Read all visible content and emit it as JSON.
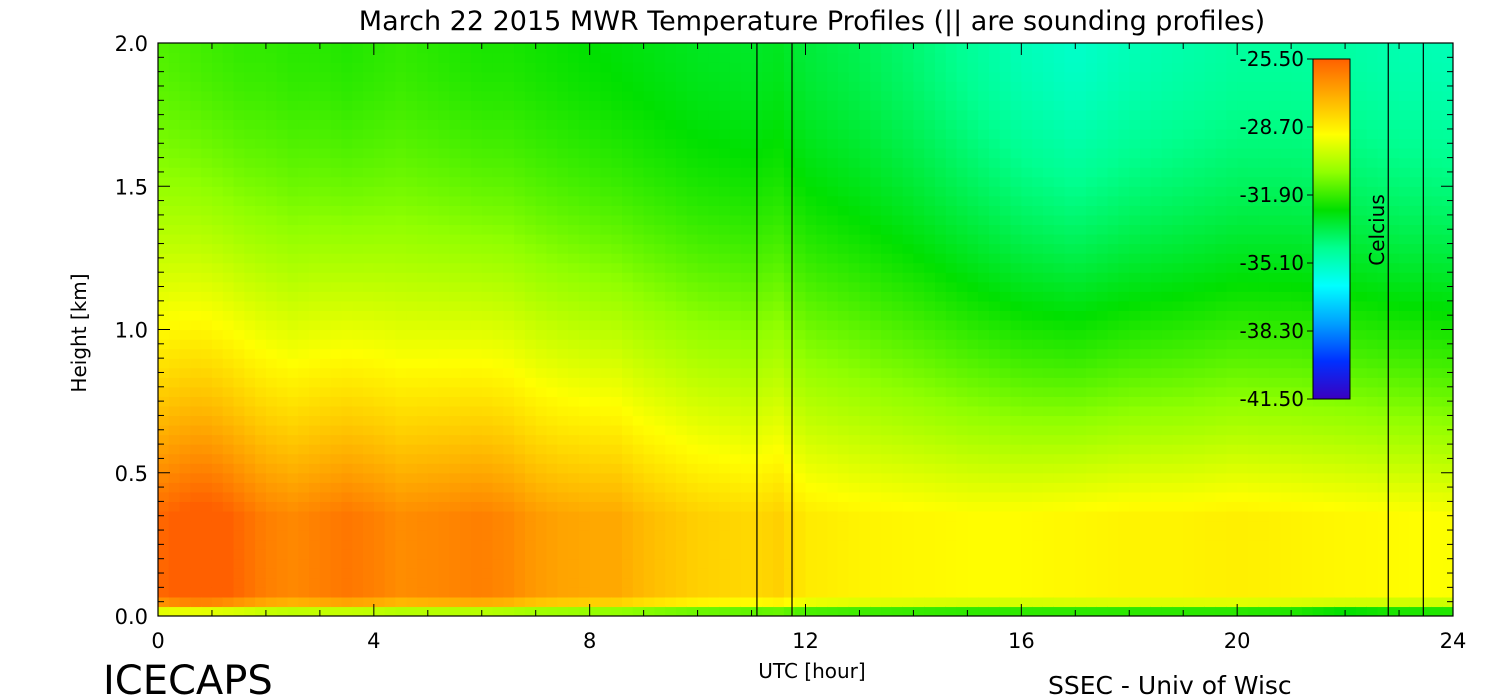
{
  "chart_data": {
    "type": "heatmap",
    "title": "March 22 2015 MWR Temperature Profiles (|| are sounding profiles)",
    "xlabel": "UTC [hour]",
    "ylabel": "Height [km]",
    "xlim": [
      0,
      24
    ],
    "ylim": [
      0,
      2
    ],
    "xticks": [
      0,
      4,
      8,
      12,
      16,
      20,
      24
    ],
    "xtick_labels": [
      "0",
      "4",
      "8",
      "12",
      "16",
      "20",
      "24"
    ],
    "yticks": [
      0,
      0.5,
      1,
      1.5,
      2
    ],
    "ytick_labels": [
      "0.0",
      "0.5",
      "1.0",
      "1.5",
      "2.0"
    ],
    "grid": false,
    "colorbar": {
      "label": "Celcius",
      "ticks": [
        -25.5,
        -28.7,
        -31.9,
        -35.1,
        -38.3,
        -41.5
      ],
      "tick_labels": [
        "-25.50",
        "-28.70",
        "-31.90",
        "-35.10",
        "-38.30",
        "-41.50"
      ],
      "range": [
        -41.5,
        -25.5
      ],
      "placement": "top-right"
    },
    "sounding_times": [
      11.1,
      11.75,
      22.8,
      23.45
    ],
    "colormap": [
      "#3a00c0",
      "#0030ff",
      "#00a0ff",
      "#00ffff",
      "#00ff90",
      "#00e000",
      "#90ff00",
      "#ffff00",
      "#ffb000",
      "#ff6000"
    ],
    "field": {
      "x": [
        0,
        0.4,
        0.8,
        1.2,
        1.6,
        2.0,
        2.5,
        3.0,
        3.5,
        4.0,
        4.5,
        5.0,
        5.5,
        6.0,
        6.5,
        7.0,
        7.5,
        8.0,
        8.5,
        9.0,
        10,
        11,
        11.5,
        12,
        13,
        14,
        15,
        16,
        17,
        18,
        19,
        20,
        21,
        22,
        23,
        24
      ],
      "y": [
        0,
        0.05,
        0.1,
        0.2,
        0.3,
        0.45,
        0.6,
        0.75,
        0.9,
        1.05,
        1.2,
        1.35,
        1.5,
        1.75,
        2.0
      ],
      "peak_temp": [
        -25.7,
        -25.4,
        -25.2,
        -25.4,
        -25.8,
        -26.2,
        -26.4,
        -26.2,
        -26.0,
        -26.2,
        -26.5,
        -26.4,
        -26.3,
        -26.2,
        -26.4,
        -26.8,
        -27.0,
        -27.1,
        -27.1,
        -27.5,
        -28.0,
        -28.2,
        -28.0,
        -28.6,
        -28.8,
        -28.9,
        -29.0,
        -29.0,
        -28.9,
        -28.8,
        -28.8,
        -28.7,
        -28.8,
        -28.9,
        -29.0,
        -29.1
      ],
      "surface_temp": [
        -32.0,
        -32.0,
        -32.2,
        -32.3,
        -32.3,
        -32.4,
        -32.5,
        -32.5,
        -32.6,
        -32.6,
        -32.7,
        -32.7,
        -32.8,
        -32.8,
        -32.9,
        -33.0,
        -33.0,
        -33.1,
        -33.2,
        -33.2,
        -33.4,
        -33.5,
        -33.5,
        -33.7,
        -33.8,
        -33.9,
        -34.0,
        -34.0,
        -34.1,
        -34.2,
        -34.2,
        -34.3,
        -34.4,
        -35.0,
        -34.4,
        -34.2
      ],
      "top_temp": [
        -31.6,
        -31.7,
        -31.8,
        -31.9,
        -32.0,
        -32.0,
        -32.1,
        -32.1,
        -32.2,
        -32.1,
        -32.0,
        -32.1,
        -32.2,
        -32.3,
        -32.3,
        -32.4,
        -32.5,
        -32.6,
        -32.7,
        -32.8,
        -33.0,
        -33.1,
        -33.0,
        -33.3,
        -33.6,
        -34.0,
        -34.5,
        -35.0,
        -35.3,
        -35.0,
        -34.8,
        -34.6,
        -34.6,
        -34.7,
        -34.9,
        -35.0
      ]
    }
  },
  "corner": {
    "left": "ICECAPS",
    "right": "SSEC - Univ of Wisc"
  }
}
